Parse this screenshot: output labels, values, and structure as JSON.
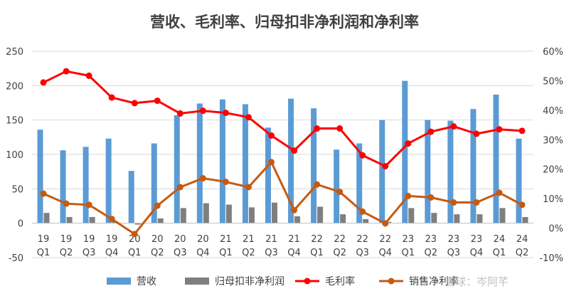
{
  "chart_data": {
    "type": "bar",
    "title": "营收、毛利率、归母扣非净利润和净利率",
    "categories": [
      [
        "19",
        "Q1"
      ],
      [
        "19",
        "Q2"
      ],
      [
        "19",
        "Q3"
      ],
      [
        "19",
        "Q4"
      ],
      [
        "20",
        "Q1"
      ],
      [
        "20",
        "Q2"
      ],
      [
        "20",
        "Q3"
      ],
      [
        "20",
        "Q4"
      ],
      [
        "21",
        "Q1"
      ],
      [
        "21",
        "Q2"
      ],
      [
        "21",
        "Q3"
      ],
      [
        "21",
        "Q4"
      ],
      [
        "22",
        "Q1"
      ],
      [
        "22",
        "Q2"
      ],
      [
        "22",
        "Q3"
      ],
      [
        "22",
        "Q4"
      ],
      [
        "23",
        "Q1"
      ],
      [
        "23",
        "Q2"
      ],
      [
        "23",
        "Q3"
      ],
      [
        "23",
        "Q4"
      ],
      [
        "24",
        "Q1"
      ],
      [
        "24",
        "Q2"
      ]
    ],
    "left_axis": {
      "min": -50,
      "max": 250,
      "step": 50,
      "ticks": [
        "-50",
        "0",
        "50",
        "100",
        "150",
        "200",
        "250"
      ]
    },
    "right_axis": {
      "min": -10,
      "max": 60,
      "step": 10,
      "ticks": [
        "-10%",
        "0%",
        "10%",
        "20%",
        "30%",
        "40%",
        "50%",
        "60%"
      ]
    },
    "grid": true,
    "legend_position": "bottom",
    "series": [
      {
        "name": "营收",
        "kind": "bar",
        "axis": "left",
        "color": "#5b9bd5",
        "values": [
          136,
          106,
          111,
          123,
          76,
          116,
          157,
          174,
          180,
          173,
          139,
          181,
          167,
          107,
          116,
          150,
          207,
          150,
          149,
          166,
          187,
          123
        ]
      },
      {
        "name": "归母扣非净利润",
        "kind": "bar",
        "axis": "left",
        "color": "#7f7f7f",
        "values": [
          15,
          9,
          9,
          3,
          -2,
          7,
          22,
          29,
          27,
          23,
          30,
          10,
          24,
          13,
          6,
          2,
          22,
          15,
          13,
          13,
          22,
          9
        ]
      },
      {
        "name": "毛利率",
        "kind": "line",
        "axis": "right",
        "color": "#ff0000",
        "values": [
          49.4,
          53.2,
          51.7,
          44.3,
          42.4,
          43.2,
          38.9,
          39.8,
          39.1,
          37.6,
          31.4,
          26.3,
          33.8,
          33.8,
          24.7,
          21.0,
          28.7,
          32.7,
          34.5,
          32.0,
          33.5,
          33.0
        ]
      },
      {
        "name": "销售净利率",
        "kind": "line",
        "axis": "right",
        "color": "#c55a11",
        "values": [
          11.7,
          8.3,
          7.9,
          3.1,
          -2.0,
          7.6,
          13.9,
          16.9,
          15.7,
          13.9,
          22.4,
          6.1,
          14.8,
          12.3,
          5.6,
          1.6,
          10.9,
          10.4,
          8.7,
          8.7,
          12.0,
          7.9
        ]
      }
    ]
  },
  "watermark": "雪球：岑阿芊"
}
